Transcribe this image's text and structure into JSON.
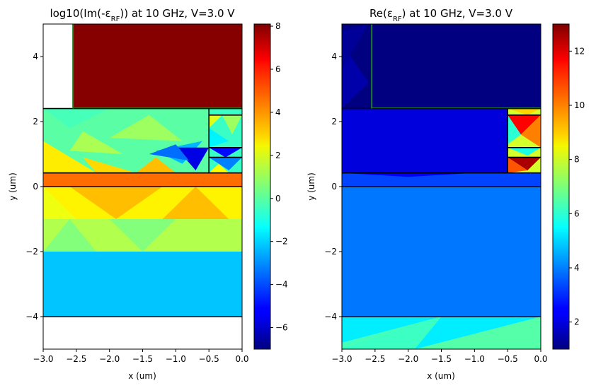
{
  "chart_data": [
    {
      "type": "heatmap",
      "title_main": "log10(Im(-ε",
      "title_sub": "RF",
      "title_rest": ")) at 10 GHz, V=3.0 V",
      "xlabel": "x (um)",
      "ylabel": "y (um)",
      "xlim": [
        -3.0,
        0.0
      ],
      "ylim": [
        -5,
        5
      ],
      "xticks": [
        "−3.0",
        "−2.5",
        "−2.0",
        "−1.5",
        "−1.0",
        "−0.5",
        "0.0"
      ],
      "xtick_values": [
        -3.0,
        -2.5,
        -2.0,
        -1.5,
        -1.0,
        -0.5,
        0.0
      ],
      "yticks": [
        "−4",
        "−2",
        "0",
        "2",
        "4"
      ],
      "ytick_values": [
        -4,
        -2,
        0,
        2,
        4
      ],
      "colorbar": {
        "min": -7,
        "max": 8.1,
        "ticks": [
          "−6",
          "−4",
          "−2",
          "0",
          "2",
          "4",
          "6",
          "8"
        ],
        "tick_values": [
          -6,
          -4,
          -2,
          0,
          2,
          4,
          6,
          8
        ]
      },
      "regions": [
        {
          "x": [
            -2.55,
            0.0
          ],
          "y": [
            2.4,
            5.0
          ],
          "value": 8.0
        },
        {
          "x": [
            -3.0,
            0.0
          ],
          "y": [
            0.0,
            0.42
          ],
          "value": 4.6
        },
        {
          "x": [
            -3.0,
            0.0
          ],
          "y": [
            -1.0,
            0.0
          ],
          "value": 2.6
        },
        {
          "x": [
            -3.0,
            0.0
          ],
          "y": [
            -2.0,
            -1.0
          ],
          "value": 1.3
        },
        {
          "x": [
            -3.0,
            0.0
          ],
          "y": [
            -4.0,
            -2.0
          ],
          "value": -2.2
        },
        {
          "x": [
            -3.0,
            -0.5
          ],
          "y": [
            0.42,
            2.4
          ],
          "value": 0.0
        },
        {
          "x": [
            -0.5,
            0.0
          ],
          "y": [
            0.42,
            2.4
          ],
          "value": -0.5
        }
      ],
      "triangles": [
        {
          "pts": [
            [
              -3.0,
              1.4
            ],
            [
              -2.2,
              0.42
            ],
            [
              -3.0,
              0.42
            ]
          ],
          "value": 2.7
        },
        {
          "pts": [
            [
              -2.2,
              0.42
            ],
            [
              -1.6,
              0.42
            ],
            [
              -2.4,
              0.9
            ]
          ],
          "value": 3.0
        },
        {
          "pts": [
            [
              -3.0,
              2.4
            ],
            [
              -2.0,
              2.4
            ],
            [
              -2.6,
              1.8
            ]
          ],
          "value": -0.3
        },
        {
          "pts": [
            [
              -2.0,
              1.5
            ],
            [
              -1.4,
              2.2
            ],
            [
              -0.9,
              1.4
            ]
          ],
          "value": 1.0
        },
        {
          "pts": [
            [
              -2.4,
              1.7
            ],
            [
              -1.8,
              1.0
            ],
            [
              -2.6,
              1.1
            ]
          ],
          "value": 1.2
        },
        {
          "pts": [
            [
              -1.3,
              1.1
            ],
            [
              -0.6,
              1.4
            ],
            [
              -0.9,
              0.7
            ]
          ],
          "value": -2.4
        },
        {
          "pts": [
            [
              -1.0,
              1.2
            ],
            [
              -0.5,
              1.2
            ],
            [
              -0.7,
              0.5
            ]
          ],
          "value": -5.5
        },
        {
          "pts": [
            [
              -1.6,
              0.42
            ],
            [
              -1.0,
              0.42
            ],
            [
              -1.3,
              0.9
            ]
          ],
          "value": 3.4
        },
        {
          "pts": [
            [
              -1.4,
              1.0
            ],
            [
              -1.0,
              1.3
            ],
            [
              -0.8,
              0.8
            ]
          ],
          "value": -3.5
        },
        {
          "pts": [
            [
              -0.5,
              2.2
            ],
            [
              -0.3,
              2.2
            ],
            [
              -0.5,
              1.8
            ]
          ],
          "value": 2.0
        },
        {
          "pts": [
            [
              -0.3,
              2.2
            ],
            [
              0.0,
              2.2
            ],
            [
              -0.15,
              1.6
            ]
          ],
          "value": 1.0
        },
        {
          "pts": [
            [
              -0.5,
              1.8
            ],
            [
              -0.2,
              1.4
            ],
            [
              -0.5,
              1.2
            ]
          ],
          "value": -1.5
        },
        {
          "pts": [
            [
              -0.5,
              1.2
            ],
            [
              0.0,
              1.2
            ],
            [
              -0.25,
              0.9
            ]
          ],
          "value": -5.0
        },
        {
          "pts": [
            [
              -0.5,
              0.9
            ],
            [
              0.0,
              0.9
            ],
            [
              -0.2,
              0.5
            ]
          ],
          "value": -3.2
        },
        {
          "pts": [
            [
              -0.5,
              0.42
            ],
            [
              -0.2,
              0.42
            ],
            [
              -0.35,
              0.7
            ]
          ],
          "value": 2.4
        },
        {
          "pts": [
            [
              -3.0,
              0.0
            ],
            [
              -2.5,
              -1.0
            ],
            [
              -3.0,
              -1.0
            ]
          ],
          "value": 2.2
        },
        {
          "pts": [
            [
              -2.6,
              0.0
            ],
            [
              -1.9,
              -1.0
            ],
            [
              -1.2,
              0.0
            ]
          ],
          "value": 3.4
        },
        {
          "pts": [
            [
              -1.2,
              -1.0
            ],
            [
              -0.7,
              0.0
            ],
            [
              -0.2,
              -1.0
            ]
          ],
          "value": 3.4
        },
        {
          "pts": [
            [
              -2.6,
              -1.0
            ],
            [
              -3.0,
              -2.0
            ],
            [
              -2.2,
              -2.0
            ]
          ],
          "value": 0.6
        },
        {
          "pts": [
            [
              -2.0,
              -1.0
            ],
            [
              -1.5,
              -2.0
            ],
            [
              -1.0,
              -1.0
            ]
          ],
          "value": 0.6
        }
      ],
      "boundaries": [
        {
          "x": [
            -3.0,
            0.0
          ],
          "y": [
            2.4,
            2.4
          ]
        },
        {
          "x": [
            -3.0,
            0.0
          ],
          "y": [
            0.42,
            0.42
          ]
        },
        {
          "x": [
            -3.0,
            0.0
          ],
          "y": [
            0.0,
            0.0
          ]
        },
        {
          "x": [
            -3.0,
            0.0
          ],
          "y": [
            -4.0,
            -4.0
          ]
        },
        {
          "x": [
            -0.5,
            -0.5
          ],
          "y": [
            0.42,
            2.4
          ]
        },
        {
          "x": [
            -0.5,
            0.0
          ],
          "y": [
            2.2,
            2.2
          ]
        },
        {
          "x": [
            -0.5,
            0.0
          ],
          "y": [
            1.2,
            1.2
          ]
        },
        {
          "x": [
            -0.5,
            0.0
          ],
          "y": [
            0.9,
            0.9
          ]
        },
        {
          "x": [
            -2.55,
            -2.55
          ],
          "y": [
            2.4,
            5.0
          ]
        }
      ]
    },
    {
      "type": "heatmap",
      "title_main": "Re(ε",
      "title_sub": "RF",
      "title_rest": ") at 10 GHz, V=3.0 V",
      "xlabel": "x (um)",
      "ylabel": "y (um)",
      "xlim": [
        -3.0,
        0.0
      ],
      "ylim": [
        -5,
        5
      ],
      "xticks": [
        "−3.0",
        "−2.5",
        "−2.0",
        "−1.5",
        "−1.0",
        "−0.5",
        "0.0"
      ],
      "xtick_values": [
        -3.0,
        -2.5,
        -2.0,
        -1.5,
        -1.0,
        -0.5,
        0.0
      ],
      "yticks": [
        "−4",
        "−2",
        "0",
        "2",
        "4"
      ],
      "ytick_values": [
        -4,
        -2,
        0,
        2,
        4
      ],
      "colorbar": {
        "min": 1,
        "max": 13,
        "ticks": [
          "2",
          "4",
          "6",
          "8",
          "10",
          "12"
        ],
        "tick_values": [
          2,
          4,
          6,
          8,
          10,
          12
        ]
      },
      "regions": [
        {
          "x": [
            -3.0,
            0.0
          ],
          "y": [
            2.4,
            5.0
          ],
          "value": 1.0
        },
        {
          "x": [
            -3.0,
            -0.5
          ],
          "y": [
            0.42,
            2.4
          ],
          "value": 2.1
        },
        {
          "x": [
            -3.0,
            0.0
          ],
          "y": [
            0.0,
            0.42
          ],
          "value": 3.3
        },
        {
          "x": [
            -3.0,
            0.0
          ],
          "y": [
            -4.0,
            0.0
          ],
          "value": 3.9
        },
        {
          "x": [
            -3.0,
            0.0
          ],
          "y": [
            -5.0,
            -4.0
          ],
          "value": 5.3
        },
        {
          "x": [
            -0.5,
            0.0
          ],
          "y": [
            0.42,
            2.4
          ],
          "value": 8.0
        }
      ],
      "triangles": [
        {
          "pts": [
            [
              -3.0,
              4.4
            ],
            [
              -2.6,
              3.2
            ],
            [
              -3.0,
              2.4
            ]
          ],
          "value": 1.5
        },
        {
          "pts": [
            [
              -3.0,
              4.8
            ],
            [
              -2.6,
              5.0
            ],
            [
              -3.0,
              3.6
            ]
          ],
          "value": 1.3
        },
        {
          "pts": [
            [
              -3.0,
              0.42
            ],
            [
              -1.0,
              0.42
            ],
            [
              -2.0,
              0.3
            ]
          ],
          "value": 2.4
        },
        {
          "pts": [
            [
              -3.0,
              -5.0
            ],
            [
              -1.5,
              -4.0
            ],
            [
              -3.0,
              -4.8
            ]
          ],
          "value": 6.3
        },
        {
          "pts": [
            [
              -1.9,
              -5.0
            ],
            [
              0.0,
              -4.0
            ],
            [
              0.0,
              -5.0
            ]
          ],
          "value": 6.5
        },
        {
          "pts": [
            [
              -3.0,
              -5.0
            ],
            [
              -1.9,
              -5.0
            ],
            [
              -1.5,
              -4.0
            ]
          ],
          "value": 6.2
        },
        {
          "pts": [
            [
              -0.5,
              2.2
            ],
            [
              0.0,
              2.2
            ],
            [
              -0.3,
              1.6
            ]
          ],
          "value": 11.5
        },
        {
          "pts": [
            [
              -0.5,
              2.2
            ],
            [
              -0.3,
              1.6
            ],
            [
              -0.5,
              1.3
            ]
          ],
          "value": 6.0
        },
        {
          "pts": [
            [
              -0.3,
              1.6
            ],
            [
              0.0,
              2.2
            ],
            [
              0.0,
              1.2
            ]
          ],
          "value": 10.0
        },
        {
          "pts": [
            [
              -0.5,
              1.2
            ],
            [
              0.0,
              1.2
            ],
            [
              -0.2,
              0.95
            ]
          ],
          "value": 5.8
        },
        {
          "pts": [
            [
              -0.5,
              0.9
            ],
            [
              0.0,
              0.9
            ],
            [
              -0.2,
              0.5
            ]
          ],
          "value": 12.5
        },
        {
          "pts": [
            [
              -0.5,
              0.9
            ],
            [
              -0.2,
              0.5
            ],
            [
              -0.5,
              0.42
            ]
          ],
          "value": 10.5
        },
        {
          "pts": [
            [
              -0.5,
              2.4
            ],
            [
              0.0,
              2.4
            ],
            [
              -0.2,
              2.2
            ]
          ],
          "value": 9.0
        }
      ],
      "boundaries": [
        {
          "x": [
            -3.0,
            0.0
          ],
          "y": [
            2.4,
            2.4
          ]
        },
        {
          "x": [
            -3.0,
            0.0
          ],
          "y": [
            0.42,
            0.42
          ]
        },
        {
          "x": [
            -3.0,
            0.0
          ],
          "y": [
            0.0,
            0.0
          ]
        },
        {
          "x": [
            -3.0,
            0.0
          ],
          "y": [
            -4.0,
            -4.0
          ]
        },
        {
          "x": [
            -0.5,
            -0.5
          ],
          "y": [
            0.42,
            2.4
          ]
        },
        {
          "x": [
            -0.5,
            0.0
          ],
          "y": [
            2.2,
            2.2
          ]
        },
        {
          "x": [
            -0.5,
            0.0
          ],
          "y": [
            1.2,
            1.2
          ]
        },
        {
          "x": [
            -0.5,
            0.0
          ],
          "y": [
            0.9,
            0.9
          ]
        },
        {
          "x": [
            -2.55,
            -2.55
          ],
          "y": [
            2.4,
            5.0
          ]
        }
      ]
    }
  ]
}
